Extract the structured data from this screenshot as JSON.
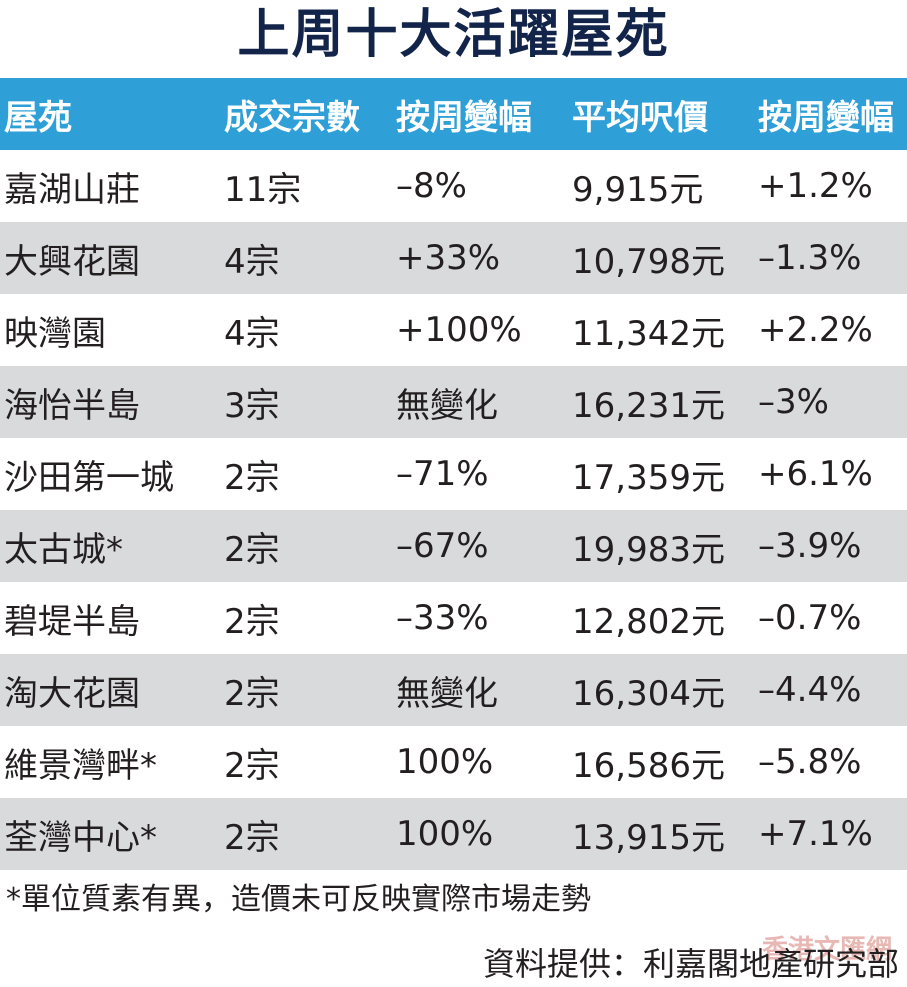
{
  "title": "上周十大活躍屋苑",
  "table": {
    "headers": [
      "屋苑",
      "成交宗數",
      "按周變幅",
      "平均呎價",
      "按周變幅"
    ],
    "rows": [
      [
        "嘉湖山莊",
        "11宗",
        "–8%",
        "9,915元",
        "+1.2%"
      ],
      [
        "大興花園",
        "4宗",
        "+33%",
        "10,798元",
        "–1.3%"
      ],
      [
        "映灣園",
        "4宗",
        "+100%",
        "11,342元",
        "+2.2%"
      ],
      [
        "海怡半島",
        "3宗",
        "無變化",
        "16,231元",
        "–3%"
      ],
      [
        "沙田第一城",
        "2宗",
        "–71%",
        "17,359元",
        "+6.1%"
      ],
      [
        "太古城*",
        "2宗",
        "–67%",
        "19,983元",
        "–3.9%"
      ],
      [
        "碧堤半島",
        "2宗",
        "–33%",
        "12,802元",
        "–0.7%"
      ],
      [
        "淘大花園",
        "2宗",
        "無變化",
        "16,304元",
        "–4.4%"
      ],
      [
        "維景灣畔*",
        "2宗",
        "100%",
        "16,586元",
        "–5.8%"
      ],
      [
        "荃灣中心*",
        "2宗",
        "100%",
        "13,915元",
        "+7.1%"
      ]
    ]
  },
  "footnote": "*單位質素有異，造價未可反映實際市場走勢",
  "source": "資料提供：利嘉閣地產研究部",
  "watermark": "香港文匯網",
  "colors": {
    "title": "#12244a",
    "header_bg": "#2f9fd7",
    "shade_row": "#d9dadb"
  }
}
